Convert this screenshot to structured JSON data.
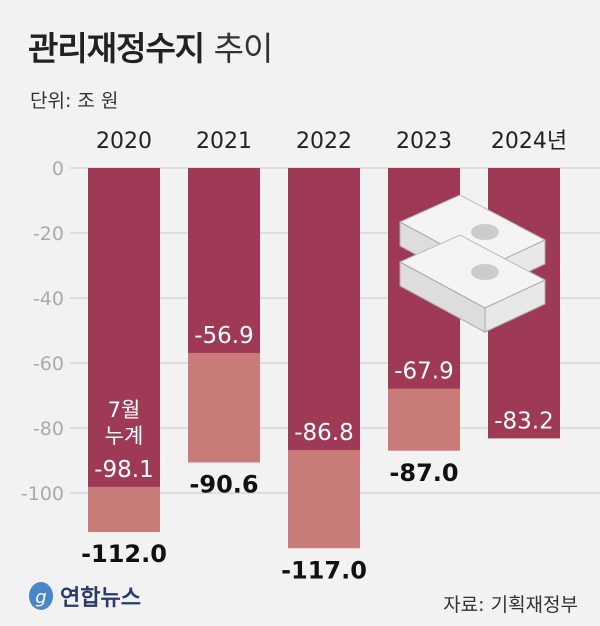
{
  "header": {
    "title_bold": "관리재정수지",
    "title_light": "추이",
    "unit": "단위: 조 원"
  },
  "footer": {
    "logo": "연합뉴스",
    "source": "자료: 기획재정부"
  },
  "colors": {
    "july": "#9e3a56",
    "full_year": "#c97b7a",
    "grid": "#c8c8c8",
    "tick": "#aaaaaa"
  },
  "chart_data": {
    "type": "bar",
    "categories": [
      "2020",
      "2021",
      "2022",
      "2023",
      "2024년"
    ],
    "series": [
      {
        "name": "7월 누계",
        "values": [
          -98.1,
          -56.9,
          -86.8,
          -67.9,
          -83.2
        ]
      },
      {
        "values": [
          -112.0,
          -90.6,
          -117.0,
          -87.0,
          null
        ]
      }
    ],
    "july_label": [
      "7월",
      "누계"
    ],
    "value_labels_july": [
      "-98.1",
      "-56.9",
      "-86.8",
      "-67.9",
      "-83.2"
    ],
    "value_labels_year": [
      "-112.0",
      "-90.6",
      "-117.0",
      "-87.0",
      ""
    ],
    "yticks": [
      0,
      -20,
      -40,
      -60,
      -80,
      -100
    ],
    "ylim": [
      -117,
      0
    ],
    "grid": true
  }
}
